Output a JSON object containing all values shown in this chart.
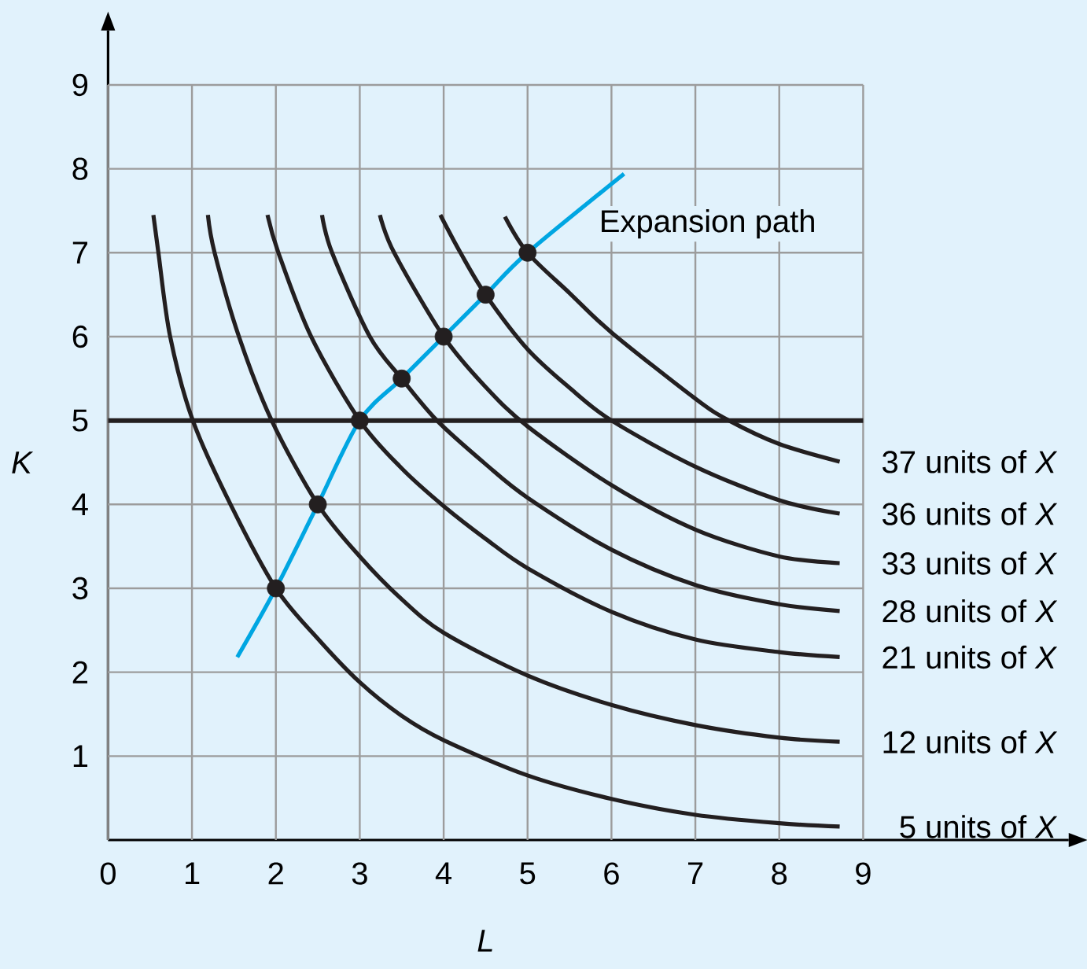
{
  "chart_data": {
    "type": "line",
    "xlabel": "L",
    "ylabel": "K",
    "xlim": [
      0,
      11.45
    ],
    "ylim": [
      0,
      9.65
    ],
    "xticks": [
      0,
      1,
      2,
      3,
      4,
      5,
      6,
      7,
      8,
      9
    ],
    "yticks": [
      1,
      2,
      3,
      4,
      5,
      6,
      7,
      8,
      9
    ],
    "grid": true,
    "series": [
      {
        "name": "5 units of *X*",
        "color": "#231f20",
        "x": [
          0.54,
          0.6,
          0.74,
          1.01,
          1.46,
          2,
          2.5,
          3,
          3.5,
          4,
          5,
          6,
          7,
          8,
          8.72
        ],
        "values": [
          7.45,
          7,
          6,
          5,
          4,
          3,
          2.4,
          1.88,
          1.48,
          1.19,
          0.77,
          0.49,
          0.3,
          0.2,
          0.16
        ]
      },
      {
        "name": "12 units of *X*",
        "color": "#231f20",
        "x": [
          1.19,
          1.27,
          1.56,
          1.95,
          2.5,
          3,
          3.5,
          4,
          5,
          6,
          7,
          8,
          8.72
        ],
        "values": [
          7.45,
          7,
          6,
          5,
          4,
          3.38,
          2.87,
          2.47,
          1.96,
          1.61,
          1.37,
          1.22,
          1.17
        ]
      },
      {
        "name": "21 units of *X*",
        "color": "#231f20",
        "x": [
          1.9,
          2.03,
          2.42,
          3,
          3.5,
          4,
          4.5,
          5,
          6,
          7,
          8,
          8.72
        ],
        "values": [
          7.45,
          7,
          6,
          5,
          4.43,
          3.98,
          3.59,
          3.24,
          2.72,
          2.39,
          2.24,
          2.18
        ]
      },
      {
        "name": "28 units of *X*",
        "color": "#231f20",
        "x": [
          2.55,
          2.67,
          3.12,
          3.5,
          3.92,
          4.5,
          5,
          6,
          7,
          8,
          8.72
        ],
        "values": [
          7.45,
          7,
          6,
          5.5,
          5,
          4.48,
          4.08,
          3.46,
          3.04,
          2.81,
          2.73
        ]
      },
      {
        "name": "33 units of *X*",
        "color": "#231f20",
        "x": [
          3.24,
          3.41,
          4,
          4.5,
          5,
          6,
          7,
          8,
          8.72
        ],
        "values": [
          7.45,
          7,
          6,
          5.4,
          4.93,
          4.23,
          3.7,
          3.38,
          3.3
        ]
      },
      {
        "name": "36 units of *X*",
        "color": "#231f20",
        "x": [
          3.96,
          4.2,
          4.5,
          5,
          5.5,
          6,
          7,
          8,
          8.72
        ],
        "values": [
          7.45,
          7,
          6.5,
          5.85,
          5.39,
          5,
          4.45,
          4.05,
          3.89
        ]
      },
      {
        "name": "37 units of *X*",
        "color": "#231f20",
        "x": [
          4.73,
          5,
          5.5,
          6,
          7,
          7.4,
          8,
          8.72
        ],
        "values": [
          7.43,
          7,
          6.52,
          6.05,
          5.26,
          5,
          4.72,
          4.51
        ]
      },
      {
        "name": "Expansion path",
        "color": "#00a6e2",
        "x": [
          1.54,
          2,
          2.5,
          3,
          3.5,
          4,
          4.5,
          5,
          6.15
        ],
        "values": [
          2.18,
          3,
          4,
          5,
          5.5,
          6,
          6.5,
          7,
          7.94
        ]
      },
      {
        "type": "scatter",
        "marker": "circle",
        "color": "#231f20",
        "x": [
          2,
          2.5,
          3,
          3.5,
          4,
          4.5,
          5
        ],
        "values": [
          3,
          4,
          5,
          5.5,
          6,
          6.5,
          7
        ]
      }
    ],
    "ref_lines": [
      {
        "axis": "y",
        "value": 5,
        "color": "#231f20"
      }
    ]
  }
}
